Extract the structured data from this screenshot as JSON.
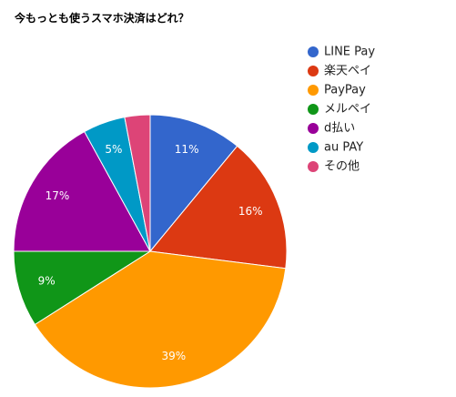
{
  "chart_data": {
    "type": "pie",
    "title": "今もっとも使うスマホ決済はどれ？",
    "legend_position": "right",
    "categories": [
      "LINE Pay",
      "楽天ペイ",
      "PayPay",
      "メルペイ",
      "d払い",
      "au PAY",
      "その他"
    ],
    "values": [
      11,
      16,
      39,
      9,
      17,
      5,
      3
    ],
    "labels": [
      "11%",
      "16%",
      "39%",
      "9%",
      "17%",
      "5%",
      ""
    ],
    "colors": [
      "#3366cc",
      "#dc3912",
      "#ff9900",
      "#109618",
      "#990099",
      "#0099c6",
      "#dd4477"
    ]
  }
}
